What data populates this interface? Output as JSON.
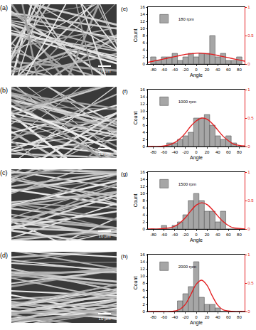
{
  "chart_data": [
    {
      "type": "histogram",
      "annotations": [
        "(e)"
      ],
      "x_label": "Angle",
      "y_label": "Count",
      "bins": [
        -85,
        -75,
        -65,
        -55,
        -45,
        -35,
        -25,
        -15,
        -5,
        5,
        15,
        25,
        35,
        45,
        55,
        65,
        75,
        85
      ],
      "series": [
        {
          "name": "180 rpm",
          "color": "#a6a6a6",
          "values": [
            2,
            1,
            2,
            2,
            3,
            1,
            2,
            3,
            2,
            3,
            3,
            8,
            2,
            3,
            1,
            1,
            2
          ]
        },
        {
          "type": "line",
          "color": "#e31a1c",
          "axis": "y2",
          "x": [
            -90,
            -80,
            -70,
            -60,
            -50,
            -40,
            -30,
            -20,
            -10,
            0,
            10,
            20,
            30,
            40,
            50,
            60,
            70,
            80,
            90
          ],
          "values": [
            0.03,
            0.05,
            0.07,
            0.09,
            0.11,
            0.13,
            0.15,
            0.17,
            0.18,
            0.19,
            0.19,
            0.18,
            0.17,
            0.15,
            0.13,
            0.11,
            0.09,
            0.07,
            0.05
          ]
        }
      ],
      "xlim": [
        -90,
        90
      ],
      "xticks": [
        -80,
        -60,
        -40,
        -20,
        0,
        20,
        40,
        60,
        80
      ],
      "ylim": [
        0,
        16
      ],
      "yticks": [
        0,
        2,
        4,
        6,
        8,
        10,
        12,
        14,
        16
      ],
      "y2lim": [
        0,
        1
      ],
      "y2ticks": [
        0,
        0.5,
        1
      ],
      "legend": "upper left"
    },
    {
      "type": "histogram",
      "annotations": [
        "(f)"
      ],
      "x_label": "Angle",
      "y_label": "Count",
      "bins": [
        -85,
        -75,
        -65,
        -55,
        -45,
        -35,
        -25,
        -15,
        -5,
        5,
        15,
        25,
        35,
        45,
        55,
        65,
        75,
        85
      ],
      "series": [
        {
          "name": "1000 rpm",
          "color": "#a6a6a6",
          "values": [
            0,
            0,
            0,
            1,
            1,
            2,
            3,
            4,
            8,
            8,
            9,
            6,
            3,
            2,
            3,
            1,
            0
          ]
        },
        {
          "type": "line",
          "color": "#e31a1c",
          "axis": "y2",
          "x": [
            -90,
            -80,
            -70,
            -60,
            -50,
            -40,
            -30,
            -20,
            -10,
            0,
            10,
            20,
            30,
            40,
            50,
            60,
            70,
            80,
            90
          ],
          "values": [
            0,
            0,
            0,
            0.01,
            0.03,
            0.07,
            0.14,
            0.24,
            0.36,
            0.45,
            0.5,
            0.48,
            0.4,
            0.29,
            0.18,
            0.1,
            0.04,
            0.02,
            0.01
          ]
        }
      ],
      "xlim": [
        -90,
        90
      ],
      "xticks": [
        -80,
        -60,
        -40,
        -20,
        0,
        20,
        40,
        60,
        80
      ],
      "ylim": [
        0,
        16
      ],
      "yticks": [
        0,
        2,
        4,
        6,
        8,
        10,
        12,
        14,
        16
      ],
      "y2lim": [
        0,
        1
      ],
      "y2ticks": [
        0,
        0.5,
        1
      ],
      "legend": "upper left"
    },
    {
      "type": "histogram",
      "annotations": [
        "(g)"
      ],
      "x_label": "Angle",
      "y_label": "Count",
      "bins": [
        -85,
        -75,
        -65,
        -55,
        -45,
        -35,
        -25,
        -15,
        -5,
        5,
        15,
        25,
        35,
        45,
        55,
        65,
        75,
        85
      ],
      "series": [
        {
          "name": "1500 rpm",
          "color": "#a6a6a6",
          "values": [
            0,
            0,
            1,
            0,
            1,
            2,
            4,
            8,
            10,
            8,
            5,
            5,
            2,
            5,
            0,
            0,
            0
          ]
        },
        {
          "type": "line",
          "color": "#e31a1c",
          "axis": "y2",
          "x": [
            -90,
            -80,
            -70,
            -60,
            -50,
            -40,
            -30,
            -20,
            -10,
            0,
            10,
            20,
            30,
            40,
            50,
            60,
            70,
            80,
            90
          ],
          "values": [
            0,
            0,
            0,
            0.01,
            0.02,
            0.05,
            0.11,
            0.2,
            0.32,
            0.42,
            0.46,
            0.43,
            0.34,
            0.23,
            0.13,
            0.06,
            0.02,
            0.01,
            0
          ]
        }
      ],
      "xlim": [
        -90,
        90
      ],
      "xticks": [
        -80,
        -60,
        -40,
        -20,
        0,
        20,
        40,
        60,
        80
      ],
      "ylim": [
        0,
        16
      ],
      "yticks": [
        0,
        2,
        4,
        6,
        8,
        10,
        12,
        14,
        16
      ],
      "y2lim": [
        0,
        1
      ],
      "y2ticks": [
        0,
        0.5,
        1
      ],
      "legend": "upper left"
    },
    {
      "type": "histogram",
      "annotations": [
        "(h)"
      ],
      "x_label": "Angle",
      "y_label": "Count",
      "bins": [
        -85,
        -75,
        -65,
        -55,
        -45,
        -35,
        -25,
        -15,
        -5,
        5,
        15,
        25,
        35,
        45,
        55,
        65,
        75,
        85
      ],
      "series": [
        {
          "name": "2000 rpm",
          "color": "#a6a6a6",
          "values": [
            0,
            0,
            0,
            0,
            0,
            3,
            5,
            7,
            14,
            4,
            2,
            2,
            1,
            0,
            0,
            0,
            0
          ]
        },
        {
          "type": "line",
          "color": "#e31a1c",
          "axis": "y2",
          "x": [
            -90,
            -80,
            -70,
            -60,
            -50,
            -40,
            -30,
            -20,
            -10,
            0,
            10,
            20,
            30,
            40,
            50,
            60,
            70,
            80,
            90
          ],
          "values": [
            0,
            0,
            0,
            0,
            0,
            0.01,
            0.04,
            0.13,
            0.3,
            0.48,
            0.55,
            0.46,
            0.27,
            0.11,
            0.03,
            0.01,
            0,
            0,
            0
          ]
        }
      ],
      "xlim": [
        -90,
        90
      ],
      "xticks": [
        -80,
        -60,
        -40,
        -20,
        0,
        20,
        40,
        60,
        80
      ],
      "ylim": [
        0,
        16
      ],
      "yticks": [
        0,
        2,
        4,
        6,
        8,
        10,
        12,
        14,
        16
      ],
      "y2lim": [
        0,
        1
      ],
      "y2ticks": [
        0,
        0.5,
        1
      ],
      "legend": "upper left"
    }
  ],
  "images": [
    {
      "label": "(a)",
      "scale_bar": "10 μm"
    },
    {
      "label": "(b)",
      "scale_bar": "10 μm"
    },
    {
      "label": "(c)",
      "scale_bar": "10 μm"
    },
    {
      "label": "(d)",
      "scale_bar": "10 μm"
    }
  ]
}
